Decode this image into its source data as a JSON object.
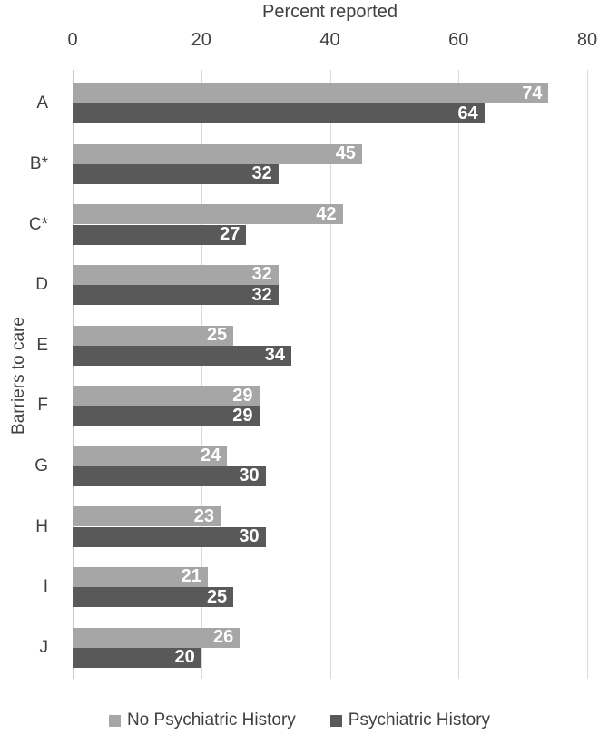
{
  "chart_data": {
    "type": "bar",
    "orientation": "horizontal",
    "title": "Percent reported",
    "ylabel": "Barriers to care",
    "xlabel": "Percent reported",
    "categories": [
      "A",
      "B*",
      "C*",
      "D",
      "E",
      "F",
      "G",
      "H",
      "I",
      "J"
    ],
    "series": [
      {
        "name": "No Psychiatric History",
        "color": "#a6a6a6",
        "values": [
          74,
          45,
          42,
          32,
          25,
          29,
          24,
          23,
          21,
          26
        ]
      },
      {
        "name": "Psychiatric History",
        "color": "#595959",
        "values": [
          64,
          32,
          27,
          32,
          34,
          29,
          30,
          30,
          25,
          20
        ]
      }
    ],
    "x_ticks": [
      0,
      20,
      40,
      60,
      80
    ],
    "xlim": [
      0,
      80
    ],
    "grid": "vertical",
    "legend_position": "bottom",
    "value_labels": "inside-end"
  },
  "palette": {
    "grid_line": "#d9d9d9",
    "axis_line": "#c9c9c9",
    "text": "#404040",
    "value_label_text": "#ffffff",
    "background": "#ffffff"
  }
}
